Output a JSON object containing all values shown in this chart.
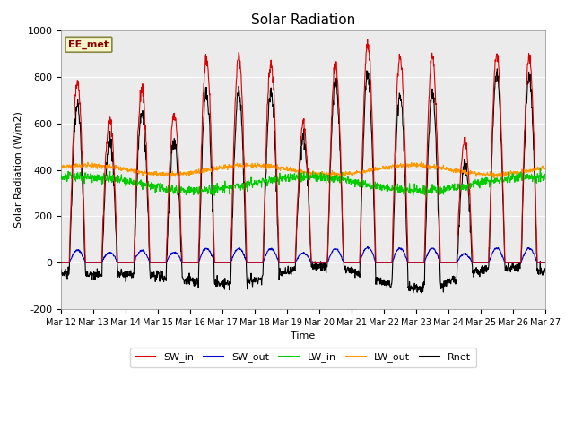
{
  "title": "Solar Radiation",
  "ylabel": "Solar Radiation (W/m2)",
  "xlabel": "Time",
  "ylim": [
    -200,
    1000
  ],
  "x_tick_labels": [
    "Mar 12",
    "Mar 13",
    "Mar 14",
    "Mar 15",
    "Mar 16",
    "Mar 17",
    "Mar 18",
    "Mar 19",
    "Mar 20",
    "Mar 21",
    "Mar 22",
    "Mar 23",
    "Mar 24",
    "Mar 25",
    "Mar 26",
    "Mar 27"
  ],
  "annotation_label": "EE_met",
  "annotation_color": "#8b0000",
  "annotation_bg": "#f5f5c8",
  "legend_entries": [
    "SW_in",
    "SW_out",
    "LW_in",
    "LW_out",
    "Rnet"
  ],
  "legend_colors": [
    "#dd0000",
    "#0000cc",
    "#00cc00",
    "#ff9900",
    "#000000"
  ],
  "line_colors": {
    "SW_in": "#dd0000",
    "SW_out": "#0000cc",
    "LW_in": "#00cc00",
    "LW_out": "#ff9900",
    "Rnet": "#000000"
  },
  "bg_color": "#ebebeb",
  "title_fontsize": 11,
  "n_days": 15,
  "pts_per_day": 96,
  "peak_heights": [
    780,
    620,
    750,
    640,
    880,
    890,
    860,
    600,
    850,
    940,
    880,
    880,
    530,
    900,
    880
  ]
}
